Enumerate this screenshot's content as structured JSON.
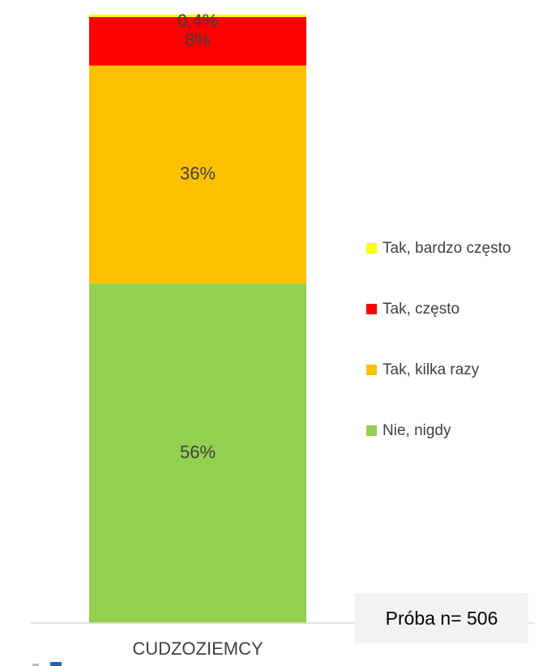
{
  "chart_data": {
    "type": "bar",
    "stacked": true,
    "categories": [
      "CUDZOZIEMCY"
    ],
    "series": [
      {
        "name": "Nie, nigdy",
        "values": [
          56
        ],
        "label": "56%",
        "color": "#92d050"
      },
      {
        "name": "Tak, kilka razy",
        "values": [
          36
        ],
        "label": "36%",
        "color": "#ffc000"
      },
      {
        "name": "Tak, często",
        "values": [
          8
        ],
        "label": "8%",
        "color": "#ff0000"
      },
      {
        "name": "Tak, bardzo często",
        "values": [
          0.4
        ],
        "label": "0,4%",
        "color": "#ffff00"
      }
    ],
    "ylim": [
      0,
      100
    ],
    "legend_position": "right",
    "grid": false
  },
  "sample_note": "Próba n= 506"
}
